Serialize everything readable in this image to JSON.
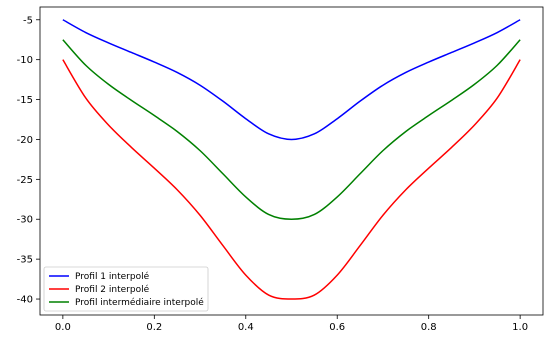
{
  "chart_data": {
    "type": "line",
    "title": "",
    "xlabel": "",
    "ylabel": "",
    "xlim": [
      -0.05,
      1.05
    ],
    "ylim": [
      -42,
      -3.4
    ],
    "grid": false,
    "legend_position": "lower-left",
    "x_ticks": [
      0.0,
      0.2,
      0.4,
      0.6,
      0.8,
      1.0
    ],
    "x_tick_labels": [
      "0.0",
      "0.2",
      "0.4",
      "0.6",
      "0.8",
      "1.0"
    ],
    "y_ticks": [
      -5,
      -10,
      -15,
      -20,
      -25,
      -30,
      -35,
      -40
    ],
    "y_tick_labels": [
      "-5",
      "-10",
      "-15",
      "-20",
      "-25",
      "-30",
      "-35",
      "-40"
    ],
    "x": [
      0.0,
      0.05,
      0.1,
      0.15,
      0.2,
      0.25,
      0.3,
      0.35,
      0.4,
      0.45,
      0.5,
      0.55,
      0.6,
      0.65,
      0.7,
      0.75,
      0.8,
      0.85,
      0.9,
      0.95,
      1.0
    ],
    "series": [
      {
        "name": "Profil 1 interpolé",
        "color": "#0000ff",
        "values": [
          -5.0,
          -6.6,
          -7.9,
          -9.1,
          -10.3,
          -11.6,
          -13.2,
          -15.2,
          -17.4,
          -19.3,
          -20.0,
          -19.3,
          -17.4,
          -15.2,
          -13.2,
          -11.6,
          -10.3,
          -9.1,
          -7.9,
          -6.6,
          -5.0
        ]
      },
      {
        "name": "Profil 2 interpolé",
        "color": "#ff0000",
        "values": [
          -10.0,
          -14.8,
          -18.2,
          -21.0,
          -23.6,
          -26.3,
          -29.5,
          -33.3,
          -37.0,
          -39.5,
          -40.0,
          -39.5,
          -37.0,
          -33.3,
          -29.5,
          -26.3,
          -23.6,
          -21.0,
          -18.2,
          -14.8,
          -10.0
        ]
      },
      {
        "name": "Profil intermédiaire interpolé",
        "color": "#008000",
        "values": [
          -7.5,
          -10.7,
          -13.1,
          -15.1,
          -17.0,
          -19.0,
          -21.4,
          -24.3,
          -27.2,
          -29.4,
          -30.0,
          -29.4,
          -27.2,
          -24.3,
          -21.4,
          -19.0,
          -17.0,
          -15.1,
          -13.1,
          -10.7,
          -7.5
        ]
      }
    ]
  }
}
